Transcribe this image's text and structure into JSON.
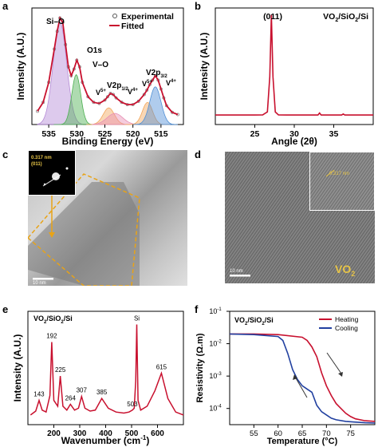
{
  "panels": {
    "a": {
      "label": "a",
      "ylabel": "Intensity (A.U.)",
      "xlabel": "Binding Energy (eV)",
      "xticks": [
        "535",
        "530",
        "525",
        "520",
        "515"
      ],
      "legend": {
        "experimental": "Experimental",
        "fitted": "Fitted"
      },
      "annotations": {
        "si_o": "Si–O",
        "o1s": "O1s",
        "v_o": "V–O",
        "v5a": "V",
        "v5a_sup": "5+",
        "v4a": "V",
        "v4a_sup": "4+",
        "v2p12": "V2p",
        "v2p12_sub": "1/2",
        "v5b": "V",
        "v5b_sup": "5+",
        "v2p32": "V2p",
        "v2p32_sub": "3/2",
        "v4b": "V",
        "v4b_sup": "4+"
      },
      "colors": {
        "fit": "#c8102e",
        "si_o": "#b48ad6",
        "v_o": "#4caf50",
        "v5": "#f2a65a",
        "v4": "#4f8fd6",
        "v2p12": "#e88fb4"
      }
    },
    "b": {
      "label": "b",
      "title": "VO",
      "title_sub1": "2",
      "title_mid": "/SiO",
      "title_sub2": "2",
      "title_end": "/Si",
      "peak_label": "(011)",
      "ylabel": "Intensity (A.U.)",
      "xlabel": "Angle (2θ)",
      "xticks": [
        "25",
        "30",
        "35"
      ]
    },
    "c": {
      "label": "c",
      "inset_text1": "0.317 nm",
      "inset_text2": "(011)",
      "scalebar": "10 nm"
    },
    "d": {
      "label": "d",
      "inset_text": "0.317 nm",
      "vo2": "VO",
      "vo2_sub": "2",
      "scalebar": "10 nm"
    },
    "e": {
      "label": "e",
      "title": "VO",
      "title_sub1": "2",
      "title_mid": "/SiO",
      "title_sub2": "2",
      "title_end": "/Si",
      "ylabel": "Intensity (A.U.)",
      "xlabel": "Wavenumber (cm",
      "xlabel_sup": "-1",
      "xlabel_end": ")",
      "xticks": [
        "200",
        "300",
        "400",
        "500",
        "600"
      ],
      "peak_labels": [
        "143",
        "192",
        "225",
        "264",
        "307",
        "385",
        "503",
        "Si",
        "615"
      ]
    },
    "f": {
      "label": "f",
      "title": "VO",
      "title_sub1": "2",
      "title_mid": "/SiO",
      "title_sub2": "2",
      "title_end": "/Si",
      "ylabel": "Resistivity (Ω.m)",
      "xlabel": "Temperature (°C)",
      "xticks": [
        "55",
        "60",
        "65",
        "70",
        "75"
      ],
      "yticks": [
        "10",
        "10",
        "10",
        "10"
      ],
      "ytick_sups": [
        "-1",
        "-2",
        "-3",
        "-4"
      ],
      "legend": {
        "heating": "Heating",
        "cooling": "Cooling"
      },
      "colors": {
        "heating": "#c8102e",
        "cooling": "#2140a0"
      }
    }
  },
  "chart_data": [
    {
      "type": "line",
      "panel": "a",
      "xlabel": "Binding Energy (eV)",
      "ylabel": "Intensity (A.U.)",
      "xlim": [
        538,
        511
      ],
      "series": [
        {
          "name": "Experimental",
          "x": [
            537,
            536,
            535,
            534,
            533.5,
            533,
            532.5,
            532,
            531.5,
            531,
            530.5,
            530,
            529.5,
            529,
            528,
            527,
            526,
            525,
            524.5,
            524,
            523.5,
            523,
            522,
            521,
            520,
            519,
            518,
            517.5,
            517,
            516.5,
            516,
            515.5,
            515,
            514.5,
            514,
            513,
            512
          ],
          "y": [
            12,
            20,
            38,
            68,
            84,
            96,
            92,
            72,
            52,
            44,
            50,
            58,
            52,
            38,
            25,
            20,
            19,
            22,
            25,
            28,
            27,
            24,
            20,
            18,
            18,
            21,
            27,
            31,
            36,
            40,
            44,
            40,
            32,
            24,
            17,
            11,
            9
          ]
        },
        {
          "name": "Fitted",
          "x": [
            537,
            536,
            535,
            534,
            533.5,
            533,
            532.5,
            532,
            531.5,
            531,
            530.5,
            530,
            529.5,
            529,
            528,
            527,
            526,
            525,
            524.5,
            524,
            523.5,
            523,
            522,
            521,
            520,
            519,
            518,
            517.5,
            517,
            516.5,
            516,
            515.5,
            515,
            514.5,
            514,
            513,
            512
          ],
          "y": [
            12,
            20,
            38,
            68,
            84,
            96,
            92,
            72,
            52,
            44,
            50,
            58,
            52,
            38,
            25,
            20,
            19,
            22,
            25,
            28,
            27,
            24,
            20,
            18,
            18,
            21,
            27,
            31,
            36,
            40,
            44,
            40,
            32,
            24,
            17,
            11,
            9
          ]
        }
      ]
    },
    {
      "type": "line",
      "panel": "b",
      "xlabel": "Angle (2θ)",
      "ylabel": "Intensity (A.U.)",
      "xlim": [
        20,
        40
      ],
      "series": [
        {
          "name": "",
          "x": [
            20,
            22,
            24,
            25,
            26,
            26.6,
            26.9,
            27.1,
            27.3,
            27.6,
            28,
            29,
            30,
            31,
            32,
            33,
            33.2,
            33.4,
            34,
            35,
            36,
            36.2,
            36.4,
            37,
            38,
            40
          ],
          "y": [
            3,
            3,
            3,
            3,
            3.2,
            6,
            40,
            100,
            40,
            6,
            3.2,
            3,
            3,
            3,
            3,
            3,
            5,
            3,
            3,
            3,
            3,
            4,
            3,
            3,
            3,
            3
          ]
        }
      ]
    },
    {
      "type": "line",
      "panel": "e",
      "xlabel": "Wavenumber (cm-1)",
      "ylabel": "Intensity (A.U.)",
      "xlim": [
        100,
        700
      ],
      "series": [
        {
          "name": "",
          "x": [
            110,
            130,
            143,
            155,
            170,
            185,
            192,
            200,
            215,
            225,
            235,
            250,
            264,
            280,
            295,
            307,
            320,
            340,
            360,
            385,
            410,
            440,
            470,
            490,
            503,
            510,
            516,
            520,
            525,
            535,
            560,
            590,
            615,
            640,
            670,
            700
          ],
          "y": [
            5,
            9,
            20,
            10,
            8,
            25,
            80,
            20,
            14,
            45,
            14,
            10,
            16,
            10,
            12,
            24,
            12,
            9,
            10,
            22,
            12,
            8,
            7,
            8,
            10,
            12,
            40,
            98,
            20,
            10,
            14,
            30,
            48,
            22,
            8,
            5
          ]
        }
      ]
    },
    {
      "type": "line",
      "panel": "f",
      "xlabel": "Temperature (°C)",
      "ylabel": "Resistivity (Ω.m)",
      "xlim": [
        50,
        80
      ],
      "ylim_log": [
        -4.5,
        -1
      ],
      "series": [
        {
          "name": "Heating",
          "x": [
            50,
            55,
            60,
            65,
            66,
            67,
            68,
            69,
            70,
            71,
            72,
            73,
            74,
            75,
            76,
            78,
            80
          ],
          "y_log10": [
            -1.7,
            -1.7,
            -1.72,
            -1.8,
            -1.9,
            -2.1,
            -2.4,
            -2.9,
            -3.3,
            -3.6,
            -3.85,
            -4.0,
            -4.15,
            -4.25,
            -4.32,
            -4.38,
            -4.4
          ]
        },
        {
          "name": "Cooling",
          "x": [
            50,
            55,
            60,
            61,
            62,
            63,
            64,
            65,
            66,
            67,
            68,
            69,
            70,
            71,
            72,
            74,
            76,
            78,
            80
          ],
          "y_log10": [
            -1.7,
            -1.72,
            -1.78,
            -1.9,
            -2.3,
            -2.8,
            -3.1,
            -3.3,
            -3.4,
            -3.5,
            -3.9,
            -4.1,
            -4.2,
            -4.3,
            -4.35,
            -4.4,
            -4.42,
            -4.44,
            -4.45
          ]
        }
      ]
    }
  ]
}
